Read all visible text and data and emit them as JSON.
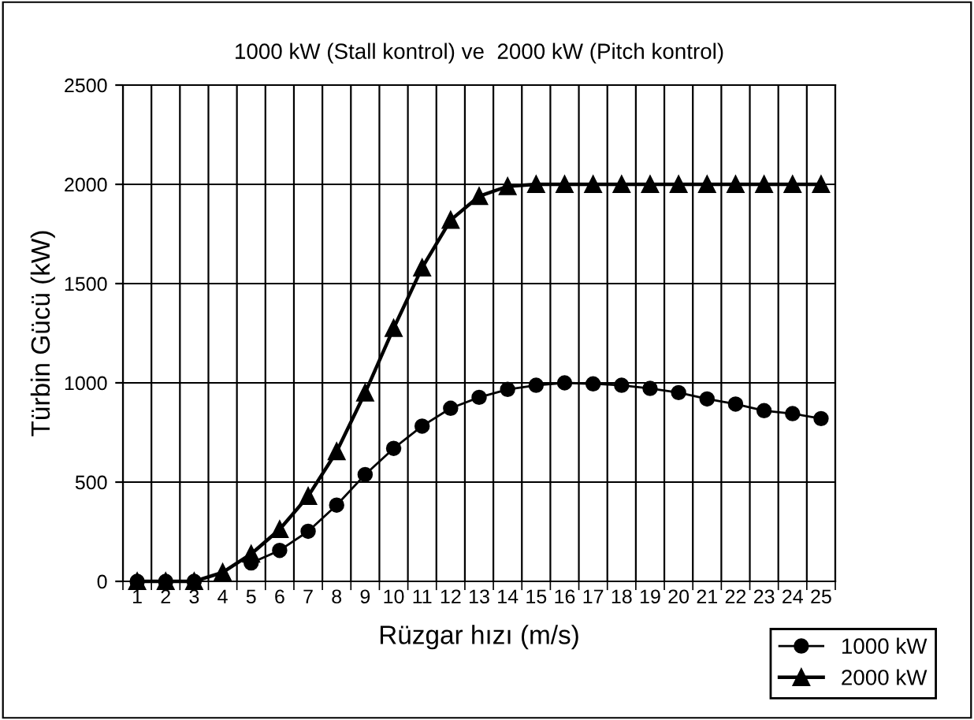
{
  "chart_data": {
    "type": "line",
    "title": "1000 kW (Stall kontrol) ve  2000 kW (Pitch kontrol)",
    "xlabel": "Rüzgar hızı (m/s)",
    "ylabel": "Türbin Gücü (kW)",
    "categories": [
      "1",
      "2",
      "3",
      "4",
      "5",
      "6",
      "7",
      "8",
      "9",
      "10",
      "11",
      "12",
      "13",
      "14",
      "15",
      "16",
      "17",
      "18",
      "19",
      "20",
      "21",
      "22",
      "23",
      "24",
      "25"
    ],
    "series": [
      {
        "name": "1000 kW",
        "color": "#000000",
        "marker": "circle",
        "values": [
          0,
          0,
          0,
          null,
          93,
          156,
          252,
          384,
          538,
          670,
          782,
          872,
          927,
          967,
          988,
          1000,
          995,
          988,
          972,
          951,
          919,
          893,
          860,
          845,
          820
        ]
      },
      {
        "name": "2000 kW",
        "color": "#000000",
        "marker": "triangle",
        "values": [
          0,
          0,
          0,
          45,
          138,
          262,
          429,
          654,
          950,
          1275,
          1580,
          1820,
          1940,
          1990,
          2000,
          2000,
          2000,
          2000,
          2000,
          2000,
          2000,
          2000,
          2000,
          2000,
          2000
        ]
      }
    ],
    "ylim": [
      0,
      2500
    ],
    "yticks": [
      0,
      500,
      1000,
      1500,
      2000,
      2500
    ],
    "grid": true,
    "legend": "bottom right",
    "line_style": "solid"
  }
}
